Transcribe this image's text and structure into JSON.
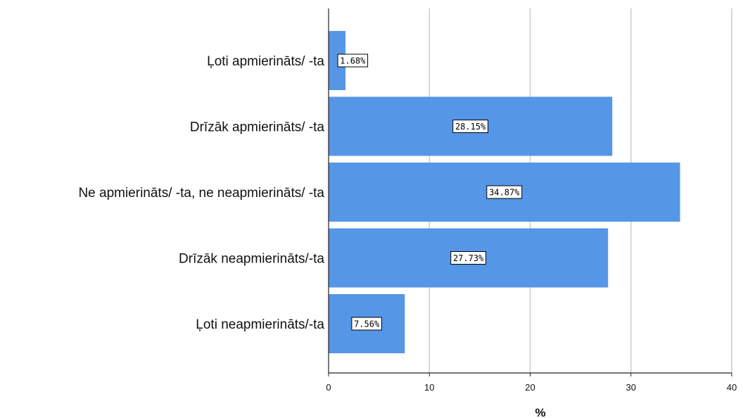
{
  "chart_data": {
    "type": "bar",
    "orientation": "horizontal",
    "categories": [
      "Ļoti apmierināts/ -ta",
      "Drīzāk apmierināts/ -ta",
      "Ne apmierināts/ -ta, ne neapmierināts/ -ta",
      "Drīzāk neapmierināts/-ta",
      "Ļoti neapmierināts/-ta"
    ],
    "values": [
      1.68,
      28.15,
      34.87,
      27.73,
      7.56
    ],
    "data_labels": [
      "1.68%",
      "28.15%",
      "34.87%",
      "27.73%",
      "7.56%"
    ],
    "title": "",
    "xlabel": "%",
    "ylabel": "",
    "xlim": [
      0,
      40
    ],
    "x_ticks": [
      "0",
      "10",
      "20",
      "30",
      "40"
    ],
    "grid": "vertical",
    "legend": "none",
    "colors": {
      "bar": "#5596e6",
      "grid": "#cccccc",
      "axis": "#222222"
    }
  }
}
